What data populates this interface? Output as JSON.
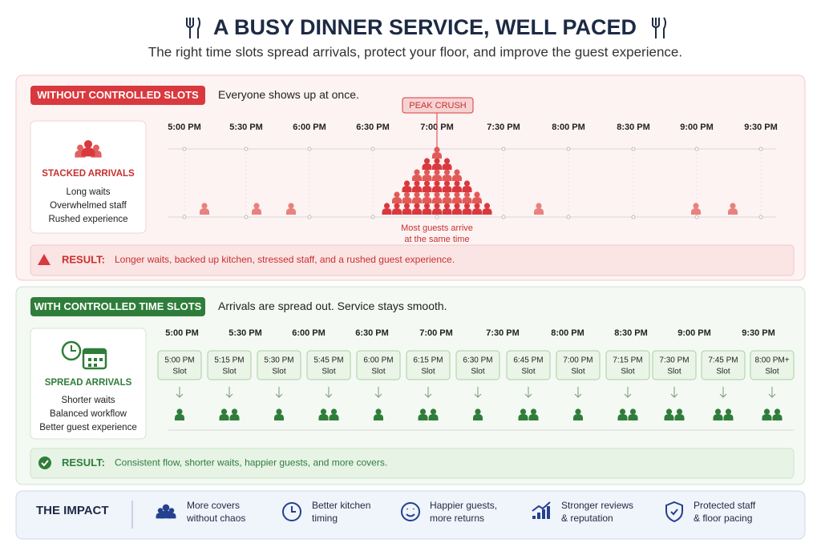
{
  "header": {
    "title": "A BUSY DINNER SERVICE, WELL PACED",
    "subtitle": "The right time slots spread arrivals, protect your floor, and improve the guest experience."
  },
  "without": {
    "badge": "WITHOUT CONTROLLED SLOTS",
    "tagline": "Everyone shows up at once.",
    "card": {
      "title": "STACKED ARRIVALS",
      "lines": [
        "Long waits",
        "Overwhelmed staff",
        "Rushed experience"
      ]
    },
    "callout": "PEAK CRUSH",
    "note": [
      "Most guests arrive",
      "at the same time"
    ],
    "times": [
      "5:00 PM",
      "5:30 PM",
      "6:00 PM",
      "6:30 PM",
      "7:00 PM",
      "7:30 PM",
      "8:00 PM",
      "8:30 PM",
      "9:00 PM",
      "9:30 PM"
    ],
    "result": {
      "label": "RESULT:",
      "text": "Longer waits, backed up kitchen, stressed staff, and a rushed guest experience."
    }
  },
  "with": {
    "badge": "WITH CONTROLLED TIME SLOTS",
    "tagline": "Arrivals are spread out. Service stays smooth.",
    "card": {
      "title": "SPREAD ARRIVALS",
      "lines": [
        "Shorter waits",
        "Balanced workflow",
        "Better guest experience"
      ]
    },
    "times": [
      "5:00 PM",
      "5:30 PM",
      "6:00 PM",
      "6:30 PM",
      "7:00 PM",
      "7:30 PM",
      "8:00 PM",
      "8:30 PM",
      "9:00 PM",
      "9:30 PM"
    ],
    "slots": [
      {
        "time": "5:00 PM",
        "label": "Slot",
        "guests": 1
      },
      {
        "time": "5:15 PM",
        "label": "Slot",
        "guests": 2
      },
      {
        "time": "5:30 PM",
        "label": "Slot",
        "guests": 1
      },
      {
        "time": "5:45 PM",
        "label": "Slot",
        "guests": 2
      },
      {
        "time": "6:00 PM",
        "label": "Slot",
        "guests": 1
      },
      {
        "time": "6:15 PM",
        "label": "Slot",
        "guests": 2
      },
      {
        "time": "6:30 PM",
        "label": "Slot",
        "guests": 1
      },
      {
        "time": "6:45 PM",
        "label": "Slot",
        "guests": 2
      },
      {
        "time": "7:00 PM",
        "label": "Slot",
        "guests": 1
      },
      {
        "time": "7:15 PM",
        "label": "Slot",
        "guests": 2
      },
      {
        "time": "7:30 PM",
        "label": "Slot",
        "guests": 2
      },
      {
        "time": "7:45 PM",
        "label": "Slot",
        "guests": 2
      },
      {
        "time": "8:00 PM+",
        "label": "Slot",
        "guests": 2
      }
    ],
    "result": {
      "label": "RESULT:",
      "text": "Consistent flow, shorter waits, happier guests, and more covers."
    }
  },
  "impact": {
    "title": "THE IMPACT",
    "items": [
      [
        "More covers",
        "without chaos"
      ],
      [
        "Better kitchen",
        "timing"
      ],
      [
        "Happier guests,",
        "more returns"
      ],
      [
        "Stronger reviews",
        "& reputation"
      ],
      [
        "Protected staff",
        "& floor pacing"
      ]
    ]
  }
}
